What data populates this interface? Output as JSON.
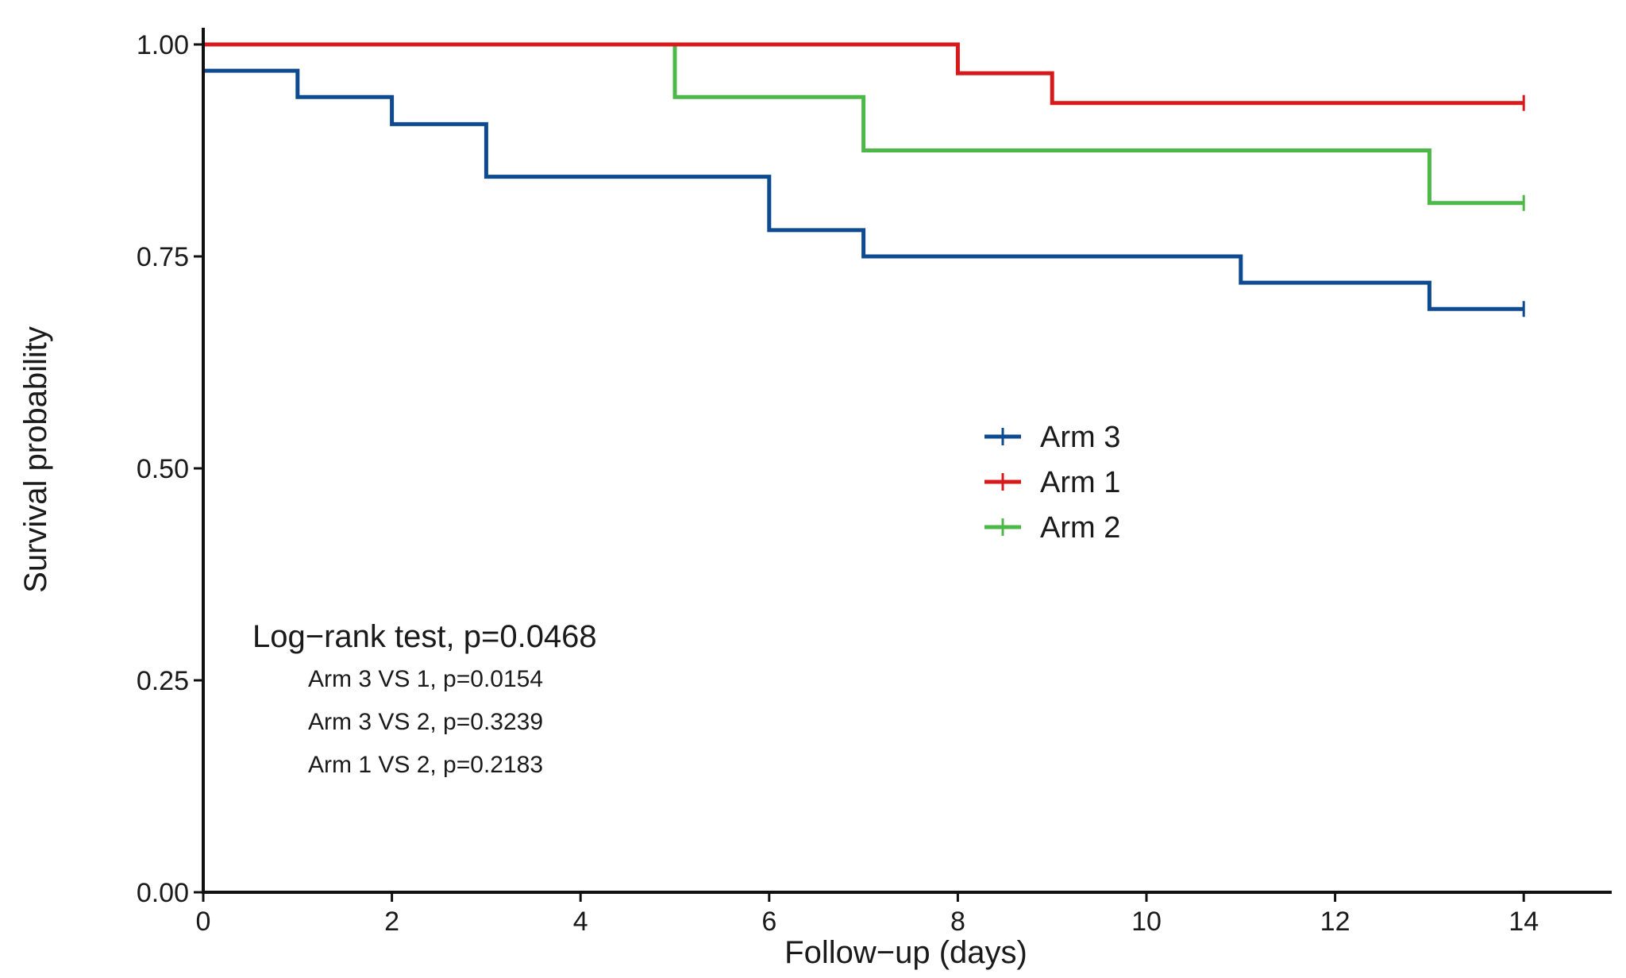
{
  "chart_data": {
    "type": "line",
    "subtype": "kaplan-meier-step",
    "title": "",
    "xlabel": "Follow−up (days)",
    "ylabel": "Survival probability",
    "xlim": [
      0,
      15
    ],
    "ylim": [
      0,
      1
    ],
    "x_ticks": [
      0,
      2,
      4,
      6,
      8,
      10,
      12,
      14
    ],
    "x_tick_labels": [
      "0",
      "2",
      "4",
      "6",
      "8",
      "10",
      "12",
      "14"
    ],
    "y_ticks": [
      0,
      0.25,
      0.5,
      0.75,
      1
    ],
    "y_tick_labels": [
      "0.00",
      "0.25",
      "0.50",
      "0.75",
      "1.00"
    ],
    "grid": false,
    "legend_position": "center-right",
    "series": [
      {
        "name": "Arm 3",
        "color": "#0d4a8f",
        "points": [
          [
            0,
            0.969
          ],
          [
            1,
            0.938
          ],
          [
            2,
            0.906
          ],
          [
            3,
            0.844
          ],
          [
            6,
            0.781
          ],
          [
            7,
            0.75
          ],
          [
            11,
            0.719
          ],
          [
            13,
            0.688
          ],
          [
            14,
            0.688
          ]
        ],
        "censor_x": [
          14
        ]
      },
      {
        "name": "Arm 1",
        "color": "#d7191c",
        "points": [
          [
            0,
            1.0
          ],
          [
            8,
            0.966
          ],
          [
            9,
            0.931
          ],
          [
            14,
            0.931
          ]
        ],
        "censor_x": [
          14
        ]
      },
      {
        "name": "Arm 2",
        "color": "#4cb848",
        "points": [
          [
            0,
            1.0
          ],
          [
            5,
            0.938
          ],
          [
            7,
            0.875
          ],
          [
            13,
            0.813
          ],
          [
            14,
            0.813
          ]
        ],
        "censor_x": [
          14
        ]
      }
    ],
    "annotations": {
      "main": "Log−rank test, p=0.0468",
      "pairwise": [
        "Arm 3 VS 1, p=0.0154",
        "Arm 3 VS 2, p=0.3239",
        "Arm 1 VS 2, p=0.2183"
      ]
    }
  }
}
